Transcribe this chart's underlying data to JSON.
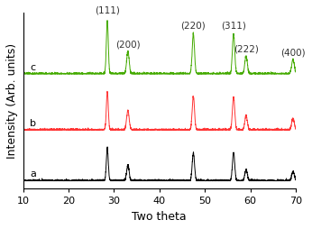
{
  "title": "",
  "xlabel": "Two theta",
  "ylabel": "Intensity (Arb. units)",
  "xlim": [
    10,
    70
  ],
  "x_ticks": [
    10,
    20,
    30,
    40,
    50,
    60,
    70
  ],
  "series_labels": [
    "a",
    "b",
    "c"
  ],
  "series_colors": [
    "#000000",
    "#ff3333",
    "#44aa00"
  ],
  "offsets": [
    0,
    1.0,
    2.1
  ],
  "peak_positions": [
    28.55,
    33.08,
    47.48,
    56.33,
    59.08,
    69.4
  ],
  "peak_labels": [
    "(111)",
    "(200)",
    "(220)",
    "(311)",
    "(222)",
    "(400)"
  ],
  "peak_heights_a": [
    0.65,
    0.3,
    0.55,
    0.55,
    0.22,
    0.18
  ],
  "peak_heights_b": [
    0.75,
    0.38,
    0.65,
    0.65,
    0.28,
    0.22
  ],
  "peak_heights_c": [
    1.05,
    0.44,
    0.78,
    0.78,
    0.35,
    0.28
  ],
  "peak_widths": [
    0.5,
    0.65,
    0.6,
    0.6,
    0.65,
    0.7
  ],
  "noise_level": 0.012,
  "background_color": "#ffffff",
  "label_fontsize": 7.5,
  "axis_label_fontsize": 9,
  "series_letter_fontsize": 8
}
